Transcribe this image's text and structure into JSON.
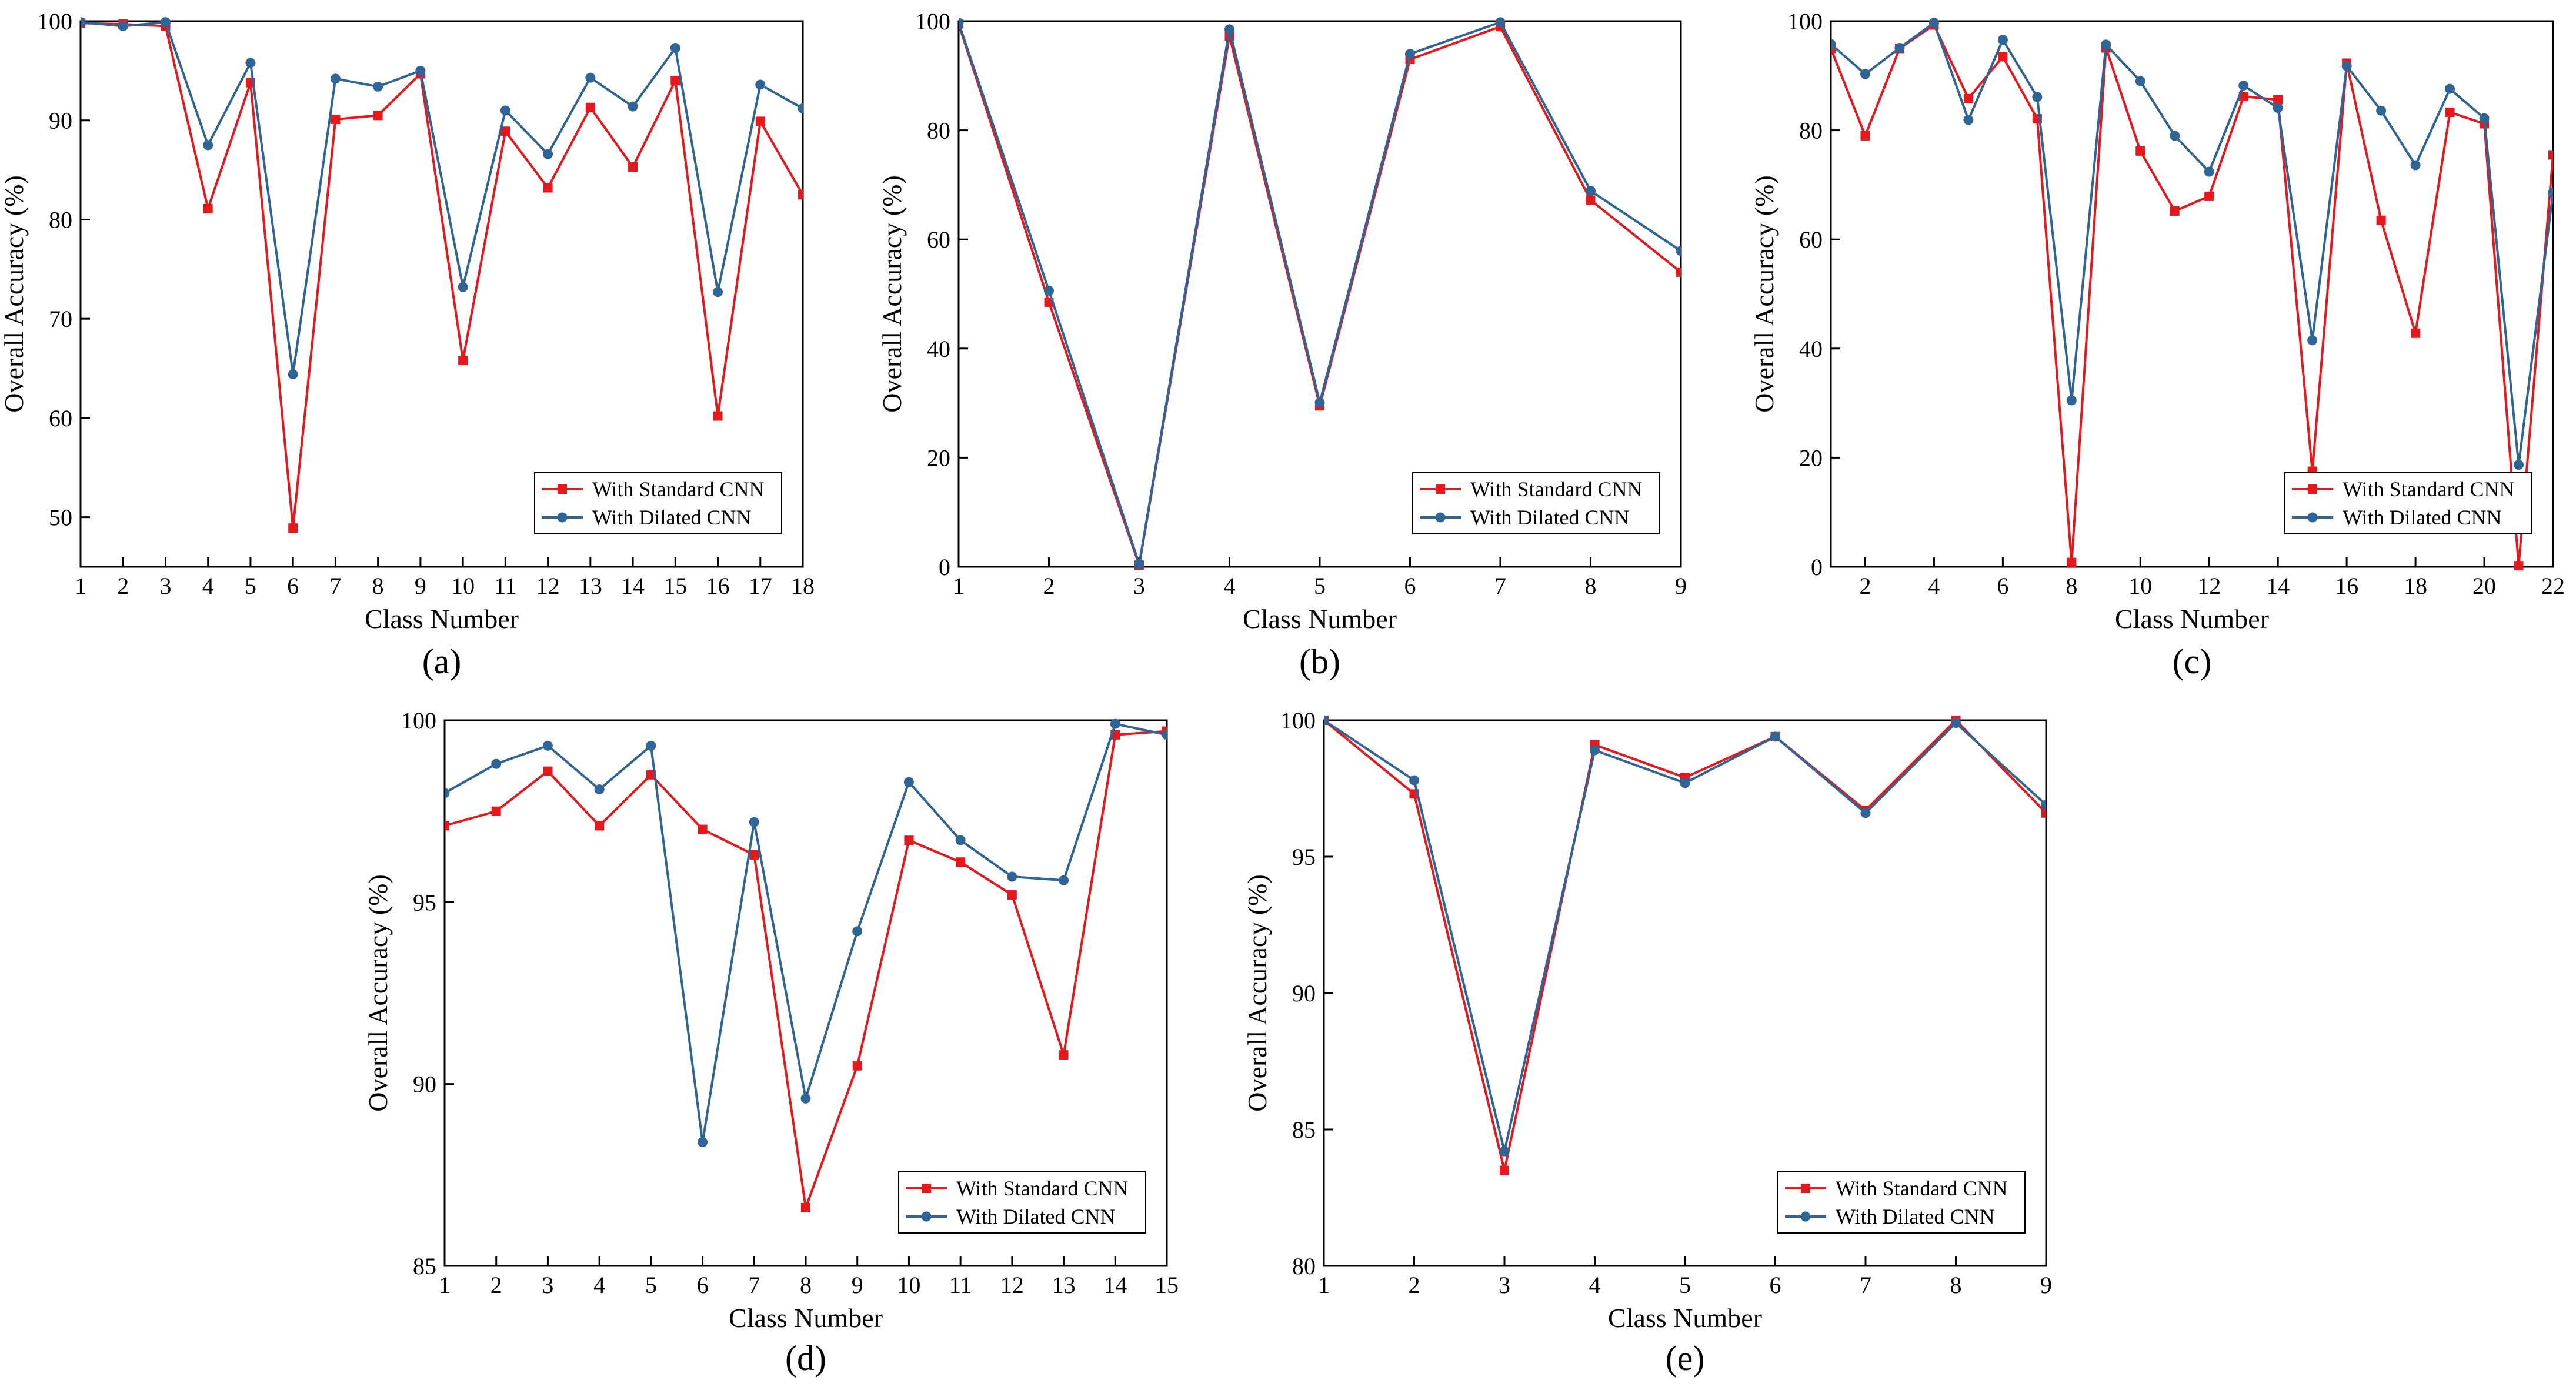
{
  "colors": {
    "standard": "#e8171c",
    "dilated": "#2f6596",
    "axis": "#000000"
  },
  "chart_data": [
    {
      "panel_label": "(a)",
      "type": "line",
      "xlabel": "Class Number",
      "ylabel": "Overall Accuracy (%)",
      "xlim": [
        1,
        18
      ],
      "ylim": [
        45,
        100
      ],
      "xticks": [
        1,
        2,
        3,
        4,
        5,
        6,
        7,
        8,
        9,
        10,
        11,
        12,
        13,
        14,
        15,
        16,
        17,
        18
      ],
      "yticks": [
        50,
        60,
        70,
        80,
        90,
        100
      ],
      "x": [
        1,
        2,
        3,
        4,
        5,
        6,
        7,
        8,
        9,
        10,
        11,
        12,
        13,
        14,
        15,
        16,
        17,
        18
      ],
      "series": [
        {
          "name": "With Standard CNN",
          "color_key": "standard",
          "marker": "square",
          "values": [
            99.8,
            99.7,
            99.5,
            81.1,
            93.8,
            48.9,
            90.1,
            90.5,
            94.7,
            65.8,
            88.9,
            83.2,
            91.3,
            85.3,
            94.0,
            60.2,
            89.9,
            82.5
          ]
        },
        {
          "name": "With Dilated CNN",
          "color_key": "dilated",
          "marker": "circle",
          "values": [
            99.9,
            99.5,
            99.9,
            87.5,
            95.8,
            64.4,
            94.2,
            93.4,
            95.0,
            73.2,
            91.0,
            86.6,
            94.3,
            91.4,
            97.3,
            72.7,
            93.6,
            91.2
          ]
        }
      ]
    },
    {
      "panel_label": "(b)",
      "type": "line",
      "xlabel": "Class Number",
      "ylabel": "Overall Accuracy (%)",
      "xlim": [
        1,
        9
      ],
      "ylim": [
        0,
        100
      ],
      "xticks": [
        1,
        2,
        3,
        4,
        5,
        6,
        7,
        8,
        9
      ],
      "yticks": [
        0,
        20,
        40,
        60,
        80,
        100
      ],
      "x": [
        1,
        2,
        3,
        4,
        5,
        6,
        7,
        8,
        9
      ],
      "series": [
        {
          "name": "With Standard CNN",
          "color_key": "standard",
          "marker": "square",
          "values": [
            99.5,
            48.5,
            0.3,
            97.3,
            29.5,
            93.0,
            99.0,
            67.2,
            54.0
          ]
        },
        {
          "name": "With Dilated CNN",
          "color_key": "dilated",
          "marker": "circle",
          "values": [
            99.7,
            50.6,
            0.5,
            98.5,
            30.1,
            94.0,
            99.8,
            68.9,
            57.9
          ]
        }
      ]
    },
    {
      "panel_label": "(c)",
      "type": "line",
      "xlabel": "Class Number",
      "ylabel": "Overall Accuracy (%)",
      "xlim": [
        1,
        22
      ],
      "ylim": [
        0,
        100
      ],
      "xticks": [
        2,
        4,
        6,
        8,
        10,
        12,
        14,
        16,
        18,
        20,
        22
      ],
      "yticks": [
        0,
        20,
        40,
        60,
        80,
        100
      ],
      "x": [
        1,
        2,
        3,
        4,
        5,
        6,
        7,
        8,
        9,
        10,
        11,
        12,
        13,
        14,
        15,
        16,
        17,
        18,
        19,
        20,
        21,
        22
      ],
      "series": [
        {
          "name": "With Standard CNN",
          "color_key": "standard",
          "marker": "square",
          "values": [
            95.0,
            79.0,
            95.0,
            99.3,
            85.8,
            93.5,
            82.1,
            0.8,
            95.1,
            76.2,
            65.2,
            67.9,
            86.2,
            85.6,
            17.5,
            92.3,
            63.5,
            42.8,
            83.3,
            81.2,
            0.2,
            75.5
          ]
        },
        {
          "name": "With Dilated CNN",
          "color_key": "dilated",
          "marker": "circle",
          "values": [
            95.8,
            90.3,
            95.1,
            99.7,
            81.9,
            96.6,
            86.1,
            30.5,
            95.7,
            89.0,
            79.0,
            72.4,
            88.2,
            84.1,
            41.5,
            91.8,
            83.6,
            73.6,
            87.6,
            82.2,
            18.7,
            68.6
          ]
        }
      ]
    },
    {
      "panel_label": "(d)",
      "type": "line",
      "xlabel": "Class Number",
      "ylabel": "Overall Accuracy (%)",
      "xlim": [
        1,
        15
      ],
      "ylim": [
        85,
        100
      ],
      "xticks": [
        1,
        2,
        3,
        4,
        5,
        6,
        7,
        8,
        9,
        10,
        11,
        12,
        13,
        14,
        15
      ],
      "yticks": [
        85,
        90,
        95,
        100
      ],
      "x": [
        1,
        2,
        3,
        4,
        5,
        6,
        7,
        8,
        9,
        10,
        11,
        12,
        13,
        14,
        15
      ],
      "series": [
        {
          "name": "With Standard CNN",
          "color_key": "standard",
          "marker": "square",
          "values": [
            97.1,
            97.5,
            98.6,
            97.1,
            98.5,
            97.0,
            96.3,
            86.6,
            90.5,
            96.7,
            96.1,
            95.2,
            90.8,
            99.6,
            99.7
          ]
        },
        {
          "name": "With Dilated CNN",
          "color_key": "dilated",
          "marker": "circle",
          "values": [
            98.0,
            98.8,
            99.3,
            98.1,
            99.3,
            88.4,
            97.2,
            89.6,
            94.2,
            98.3,
            96.7,
            95.7,
            95.6,
            99.9,
            99.6
          ]
        }
      ]
    },
    {
      "panel_label": "(e)",
      "type": "line",
      "xlabel": "Class Number",
      "ylabel": "Overall Accuracy (%)",
      "xlim": [
        1,
        9
      ],
      "ylim": [
        80,
        100
      ],
      "xticks": [
        1,
        2,
        3,
        4,
        5,
        6,
        7,
        8,
        9
      ],
      "yticks": [
        80,
        85,
        90,
        95,
        100
      ],
      "x": [
        1,
        2,
        3,
        4,
        5,
        6,
        7,
        8,
        9
      ],
      "series": [
        {
          "name": "With Standard CNN",
          "color_key": "standard",
          "marker": "square",
          "values": [
            100.0,
            97.3,
            83.5,
            99.1,
            97.9,
            99.4,
            96.7,
            100.0,
            96.6
          ]
        },
        {
          "name": "With Dilated CNN",
          "color_key": "dilated",
          "marker": "circle",
          "values": [
            100.0,
            97.8,
            84.2,
            98.9,
            97.7,
            99.4,
            96.6,
            99.9,
            96.9
          ]
        }
      ]
    }
  ]
}
